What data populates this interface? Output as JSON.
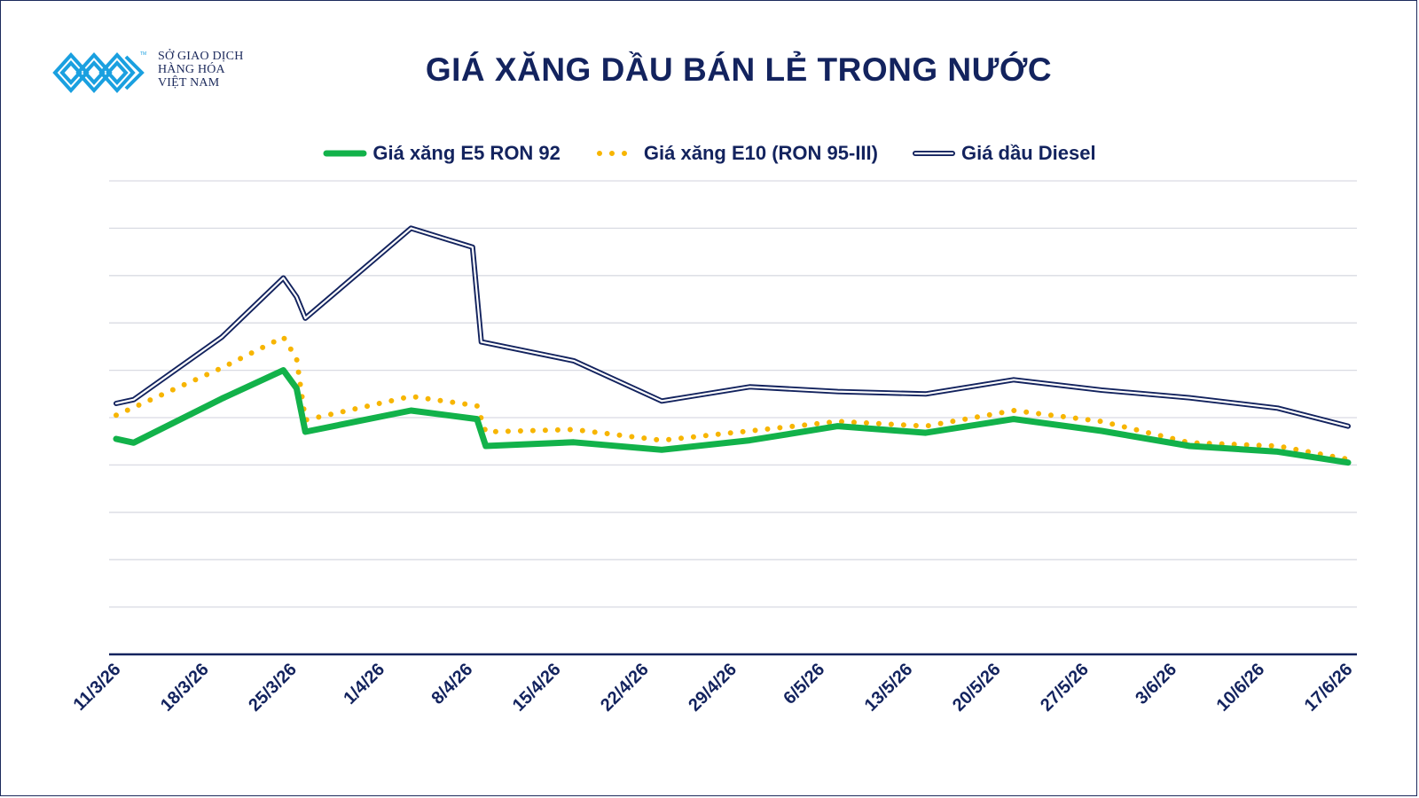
{
  "logo": {
    "tm": "TM",
    "line1": "SỞ GIAO DỊCH",
    "line2": "HÀNG HÓA",
    "line3": "VIỆT NAM"
  },
  "colors": {
    "e5": "#12b24a",
    "e10": "#f7b500",
    "diesel": "#13235e",
    "grid": "#d9dbe3",
    "axis": "#13235e"
  },
  "chart_data": {
    "type": "line",
    "title": "GIÁ XĂNG DẦU BÁN LẺ TRONG NƯỚC",
    "legend_position": "top",
    "grid": true,
    "y_labels_shown": false,
    "categories": [
      "11/3/26",
      "18/3/26",
      "25/3/26",
      "1/4/26",
      "8/4/26",
      "15/4/26",
      "22/4/26",
      "29/4/26",
      "6/5/26",
      "13/5/26",
      "20/5/26",
      "27/5/26",
      "3/6/26",
      "10/6/26",
      "17/6/26"
    ],
    "ylim": [
      0,
      10
    ],
    "series": [
      {
        "name": "Giá xăng E5 RON 92",
        "style": "solid-thick",
        "points": [
          [
            0.0,
            4.55
          ],
          [
            0.2,
            4.47
          ],
          [
            1.2,
            5.4
          ],
          [
            1.9,
            6.0
          ],
          [
            2.05,
            5.62
          ],
          [
            2.15,
            4.7
          ],
          [
            3.35,
            5.15
          ],
          [
            4.1,
            4.97
          ],
          [
            4.2,
            4.4
          ],
          [
            5.2,
            4.48
          ],
          [
            6.2,
            4.32
          ],
          [
            7.2,
            4.52
          ],
          [
            8.2,
            4.82
          ],
          [
            9.2,
            4.68
          ],
          [
            10.2,
            4.97
          ],
          [
            11.2,
            4.72
          ],
          [
            12.2,
            4.4
          ],
          [
            13.2,
            4.28
          ],
          [
            14.0,
            4.05
          ]
        ]
      },
      {
        "name": "Giá xăng E10 (RON 95-III)",
        "style": "dotted",
        "points": [
          [
            0.0,
            5.05
          ],
          [
            1.2,
            6.05
          ],
          [
            1.9,
            6.7
          ],
          [
            2.05,
            6.25
          ],
          [
            2.15,
            4.95
          ],
          [
            3.35,
            5.45
          ],
          [
            4.1,
            5.25
          ],
          [
            4.2,
            4.7
          ],
          [
            5.2,
            4.75
          ],
          [
            6.2,
            4.52
          ],
          [
            7.2,
            4.72
          ],
          [
            8.2,
            4.92
          ],
          [
            9.2,
            4.82
          ],
          [
            10.2,
            5.15
          ],
          [
            11.2,
            4.92
          ],
          [
            12.2,
            4.47
          ],
          [
            13.2,
            4.4
          ],
          [
            14.0,
            4.12
          ]
        ]
      },
      {
        "name": "Giá dầu Diesel",
        "style": "double",
        "points": [
          [
            0.0,
            5.3
          ],
          [
            0.2,
            5.38
          ],
          [
            1.2,
            6.7
          ],
          [
            1.9,
            7.95
          ],
          [
            2.05,
            7.55
          ],
          [
            2.15,
            7.1
          ],
          [
            3.35,
            9.0
          ],
          [
            4.05,
            8.6
          ],
          [
            4.15,
            6.6
          ],
          [
            5.2,
            6.2
          ],
          [
            6.2,
            5.35
          ],
          [
            7.2,
            5.65
          ],
          [
            8.2,
            5.55
          ],
          [
            9.2,
            5.5
          ],
          [
            10.2,
            5.8
          ],
          [
            11.2,
            5.58
          ],
          [
            12.2,
            5.42
          ],
          [
            13.2,
            5.2
          ],
          [
            14.0,
            4.82
          ]
        ]
      }
    ]
  }
}
